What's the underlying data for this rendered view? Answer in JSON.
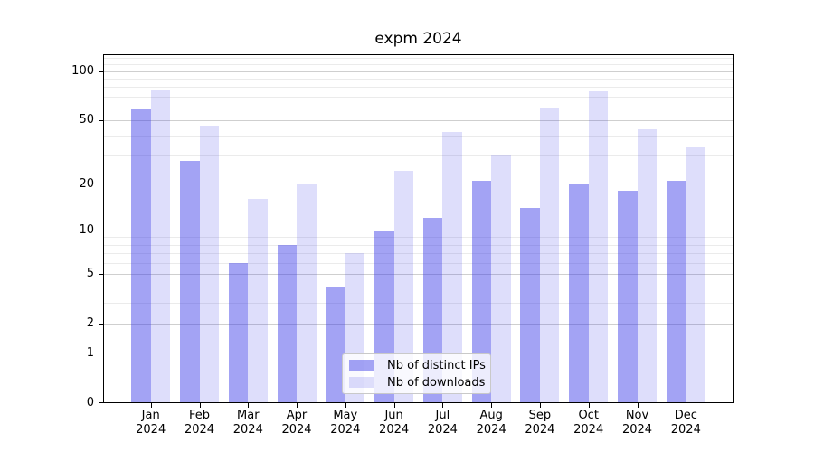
{
  "chart_data": {
    "type": "bar",
    "title": "expm 2024",
    "categories": [
      "Jan 2024",
      "Feb 2024",
      "Mar 2024",
      "Apr 2024",
      "May 2024",
      "Jun 2024",
      "Jul 2024",
      "Aug 2024",
      "Sep 2024",
      "Oct 2024",
      "Nov 2024",
      "Dec 2024"
    ],
    "series": [
      {
        "name": "Nb of distinct IPs",
        "color": "rgba(50,50,230,0.45)",
        "values": [
          58,
          28,
          6,
          8,
          4,
          10,
          12,
          21,
          14,
          20,
          18,
          21
        ]
      },
      {
        "name": "Nb of downloads",
        "color": "rgba(50,50,230,0.16)",
        "values": [
          76,
          46,
          16,
          20,
          7,
          24,
          42,
          30,
          59,
          75,
          44,
          34
        ]
      }
    ],
    "xlabel": "",
    "ylabel": "",
    "y_scale": "log1p",
    "y_axis_ticks": [
      0,
      1,
      2,
      5,
      10,
      20,
      50,
      100
    ],
    "y_minor_gridlines": [
      3,
      4,
      6,
      7,
      8,
      9,
      30,
      40,
      60,
      70,
      80,
      90,
      110,
      120
    ],
    "ylim": [
      0,
      125
    ],
    "grid": true,
    "legend_position": "lower center"
  },
  "style": {
    "major_grid_color": "#cfcfcf",
    "minor_grid_color": "#ebebeb",
    "spine_color": "#000000"
  }
}
